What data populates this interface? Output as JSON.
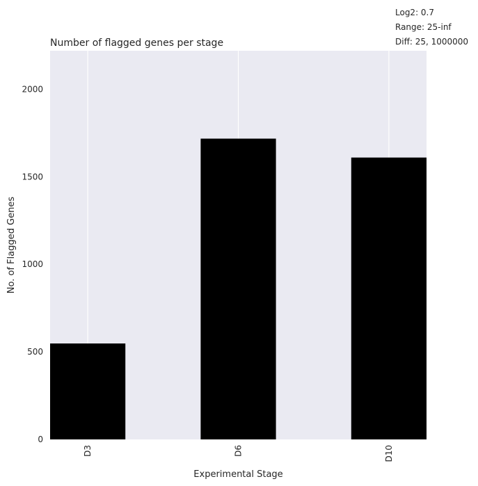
{
  "chart_data": {
    "type": "bar",
    "title": "Number of flagged genes per stage",
    "xlabel": "Experimental Stage",
    "ylabel": "No. of Flagged Genes",
    "categories": [
      "D3",
      "D6",
      "D10"
    ],
    "values": [
      548,
      1718,
      1610
    ],
    "ylim": [
      0,
      2220
    ],
    "yticks": [
      0,
      500,
      1000,
      1500,
      2000
    ],
    "bar_color": "#000000",
    "plot_background": "#eaeaf2",
    "grid": true,
    "annotations": [
      "Log2: 0.7",
      "Range: 25-inf",
      "Diff: 25, 1000000"
    ]
  }
}
